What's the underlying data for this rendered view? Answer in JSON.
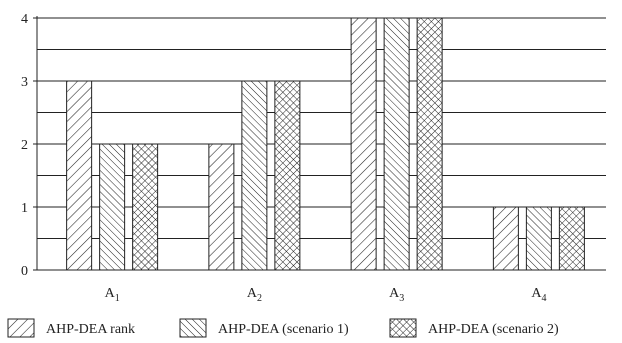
{
  "chart_data": {
    "type": "bar",
    "title": "",
    "xlabel": "",
    "ylabel": "",
    "ylim": [
      0,
      4
    ],
    "yticks": [
      0,
      1,
      2,
      3,
      4
    ],
    "grid": "horizontal lines every 0.5",
    "legend_position": "bottom",
    "categories": [
      {
        "base": "A",
        "sub": "1"
      },
      {
        "base": "A",
        "sub": "2"
      },
      {
        "base": "A",
        "sub": "3"
      },
      {
        "base": "A",
        "sub": "4"
      }
    ],
    "series": [
      {
        "name": "AHP-DEA rank",
        "pattern": "diagonal-up",
        "values": [
          3,
          2,
          4,
          1
        ]
      },
      {
        "name": "AHP-DEA (scenario 1)",
        "pattern": "diagonal-down",
        "values": [
          2,
          3,
          4,
          1
        ]
      },
      {
        "name": "AHP-DEA (scenario 2)",
        "pattern": "crosshatch",
        "values": [
          2,
          3,
          4,
          1
        ]
      }
    ],
    "colors": {
      "bar_fill": "#ffffff",
      "stroke": "#222222",
      "grid": "#222222"
    }
  }
}
